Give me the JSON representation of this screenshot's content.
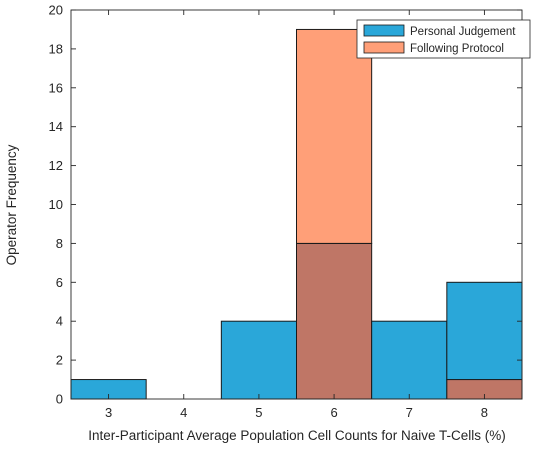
{
  "colors": {
    "personal": "#2AA7D9",
    "protocol": "#FF9F78",
    "overlap": "#BF7666",
    "bar_edge": "#1a1a1a",
    "axes": "#262626"
  },
  "chart_data": {
    "type": "bar",
    "style": "overlaid-histogram",
    "title": "",
    "xlabel": "Inter-Participant Average Population Cell Counts for Naive T-Cells (%)",
    "ylabel": "Operator Frequency",
    "xlim": [
      2.5,
      8.5
    ],
    "ylim": [
      0,
      20
    ],
    "x_ticks": [
      "3",
      "4",
      "5",
      "6",
      "7",
      "8"
    ],
    "y_ticks": [
      "0",
      "2",
      "4",
      "6",
      "8",
      "10",
      "12",
      "14",
      "16",
      "18",
      "20"
    ],
    "bin_width": 1,
    "categories": [
      3,
      4,
      5,
      6,
      7,
      8
    ],
    "series": [
      {
        "name": "Personal Judgement",
        "values": [
          1,
          0,
          4,
          8,
          4,
          6
        ]
      },
      {
        "name": "Following Protocol",
        "values": [
          0,
          0,
          0,
          19,
          0,
          1
        ]
      }
    ],
    "legend_position": "top-right",
    "grid": false
  }
}
